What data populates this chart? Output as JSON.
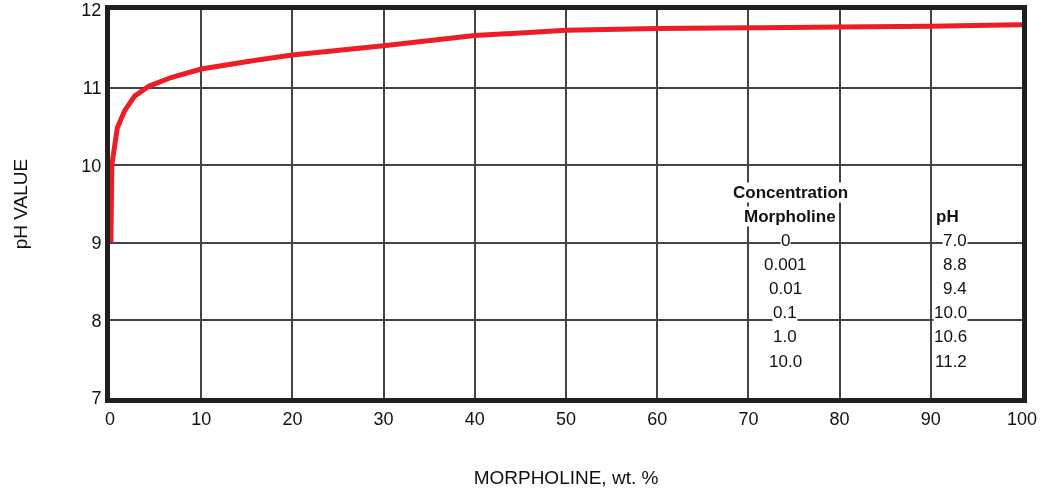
{
  "chart_data": {
    "type": "line",
    "xlabel": "MORPHOLINE, wt. %",
    "ylabel": "pH VALUE",
    "x": [
      0.1,
      0.2,
      0.8,
      1.6,
      2.7,
      4.3,
      6.7,
      10,
      15.3,
      20,
      30,
      40,
      50,
      60,
      70,
      80,
      90,
      100
    ],
    "series": [
      {
        "color": "#ee1c25",
        "values": [
          9.0,
          10.0,
          10.48,
          10.7,
          10.89,
          11.02,
          11.13,
          11.24,
          11.34,
          11.42,
          11.54,
          11.67,
          11.74,
          11.76,
          11.77,
          11.78,
          11.79,
          11.81
        ]
      }
    ],
    "xlim": [
      0,
      100
    ],
    "xticks": [
      0,
      10,
      20,
      30,
      40,
      50,
      60,
      70,
      80,
      90,
      100
    ],
    "ylim": [
      7,
      12
    ],
    "yticks": [
      7,
      8,
      9,
      10,
      11,
      12
    ],
    "grid": true,
    "marker": "none",
    "line_style": "solid",
    "annotations": [
      "Concentration",
      "Morpholine",
      "pH",
      "0",
      "7.0",
      "0.001",
      "8.8",
      "0.01",
      "9.4",
      "0.1",
      "10.0",
      "1.0",
      "10.6",
      "10.0",
      "11.2"
    ]
  }
}
